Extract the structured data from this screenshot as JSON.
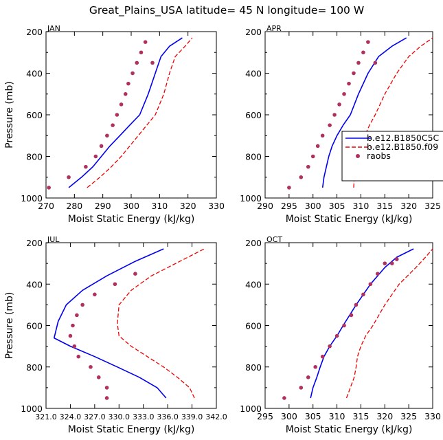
{
  "figure_title": "Great_Plains_USA   latitude= 45 N longitude= 100 W",
  "colors": {
    "model_a": "#0000ee",
    "model_b": "#ee0000",
    "raobs": "#b03060",
    "axis": "#000000"
  },
  "legend": {
    "placement": "right of APR panel",
    "entries": [
      {
        "label": "b.e12.B1850C5C",
        "style": "solid",
        "color_key": "model_a"
      },
      {
        "label": "b.e12.B1850.f09",
        "style": "dashed",
        "color_key": "model_b"
      },
      {
        "label": "raobs",
        "style": "marker",
        "color_key": "raobs"
      }
    ]
  },
  "chart_data": [
    {
      "type": "line",
      "panel": "JAN",
      "xlabel": "Moist Static Energy (kJ/kg)",
      "ylabel": "Pressure (mb)",
      "xlim": [
        270,
        330
      ],
      "ylim": [
        1000,
        200
      ],
      "xticks": [
        270,
        280,
        290,
        300,
        310,
        320,
        330
      ],
      "xtick_labels": [
        "270",
        "280",
        "290",
        "300",
        "310",
        "320",
        "330"
      ],
      "yticks": [
        200,
        400,
        600,
        800,
        1000
      ],
      "ytick_labels": [
        "200",
        "400",
        "600",
        "800",
        "1000"
      ],
      "series": [
        {
          "name": "b.e12.B1850C5C",
          "style": "solid",
          "x": [
            278.0,
            282.5,
            286.5,
            289.5,
            292.5,
            296.0,
            299.5,
            303.0,
            306.0,
            308.5,
            310.5,
            313.5,
            318.0
          ],
          "y": [
            950,
            900,
            850,
            800,
            750,
            700,
            650,
            600,
            500,
            400,
            320,
            270,
            230
          ]
        },
        {
          "name": "b.e12.B1850.f09",
          "style": "dashed",
          "x": [
            284.5,
            289.0,
            293.0,
            296.5,
            299.5,
            302.5,
            305.5,
            308.5,
            311.5,
            313.5,
            315.5,
            319.0,
            321.5
          ],
          "y": [
            950,
            900,
            850,
            800,
            750,
            700,
            650,
            600,
            500,
            400,
            320,
            270,
            230
          ]
        },
        {
          "name": "raobs",
          "style": "marker",
          "x": [
            271.0,
            278.0,
            284.0,
            287.5,
            289.5,
            291.5,
            293.5,
            295.0,
            296.5,
            298.0,
            299.0,
            300.5,
            302.0,
            303.5,
            305.0,
            307.5
          ],
          "y": [
            950,
            900,
            850,
            800,
            750,
            700,
            650,
            600,
            550,
            500,
            450,
            400,
            350,
            300,
            250,
            350
          ]
        }
      ]
    },
    {
      "type": "line",
      "panel": "APR",
      "xlabel": "Moist Static Energy (kJ/kg)",
      "ylabel": "",
      "xlim": [
        290,
        325
      ],
      "ylim": [
        1000,
        200
      ],
      "xticks": [
        290,
        295,
        300,
        305,
        310,
        315,
        320,
        325
      ],
      "xtick_labels": [
        "290",
        "295",
        "300",
        "305",
        "310",
        "315",
        "320",
        "325"
      ],
      "yticks": [
        200,
        400,
        600,
        800,
        1000
      ],
      "ytick_labels": [
        "200",
        "400",
        "600",
        "800",
        "1000"
      ],
      "series": [
        {
          "name": "b.e12.B1850C5C",
          "style": "solid",
          "x": [
            302.0,
            302.3,
            302.8,
            303.3,
            304.0,
            305.0,
            306.3,
            307.8,
            309.5,
            311.5,
            313.7,
            316.5,
            319.5
          ],
          "y": [
            950,
            900,
            850,
            800,
            750,
            700,
            650,
            600,
            500,
            400,
            320,
            270,
            230
          ]
        },
        {
          "name": "b.e12.B1850.f09",
          "style": "dashed",
          "x": [
            308.5,
            308.6,
            308.9,
            309.3,
            309.9,
            310.8,
            311.8,
            313.0,
            315.0,
            317.5,
            320.0,
            322.5,
            325.0
          ],
          "y": [
            950,
            900,
            850,
            800,
            750,
            700,
            650,
            600,
            500,
            400,
            320,
            270,
            230
          ]
        },
        {
          "name": "raobs",
          "style": "marker",
          "x": [
            295.0,
            297.5,
            299.0,
            300.0,
            301.0,
            302.0,
            303.5,
            304.5,
            305.5,
            306.5,
            307.5,
            308.5,
            309.5,
            310.5,
            311.5,
            313.0
          ],
          "y": [
            950,
            900,
            850,
            800,
            750,
            700,
            650,
            600,
            550,
            500,
            450,
            400,
            350,
            300,
            250,
            350
          ]
        }
      ]
    },
    {
      "type": "line",
      "panel": "JUL",
      "xlabel": "Moist Static Energy (kJ/kg)",
      "ylabel": "Pressure (mb)",
      "xlim": [
        321.0,
        342.0
      ],
      "ylim": [
        1000,
        200
      ],
      "xticks": [
        321.0,
        324.0,
        327.0,
        330.0,
        333.0,
        336.0,
        339.0,
        342.0
      ],
      "xtick_labels": [
        "321.0",
        "324.0",
        "327.0",
        "330.0",
        "333.0",
        "336.0",
        "339.0",
        "342.0"
      ],
      "tick_label_note": "rendered on the figure as 321.0324.0327.0330.0333.0336.0339.0342.0",
      "yticks": [
        200,
        400,
        600,
        800,
        1000
      ],
      "ytick_labels": [
        "200",
        "400",
        "600",
        "800",
        "1000"
      ],
      "series": [
        {
          "name": "b.e12.B1850C5C",
          "style": "solid",
          "x": [
            335.8,
            334.7,
            332.5,
            329.8,
            327.0,
            324.0,
            322.0,
            322.5,
            323.5,
            325.5,
            328.5,
            332.0,
            335.5
          ],
          "y": [
            950,
            900,
            850,
            800,
            750,
            700,
            660,
            580,
            500,
            430,
            360,
            290,
            230
          ]
        },
        {
          "name": "b.e12.B1850.f09",
          "style": "dashed",
          "x": [
            339.3,
            338.7,
            337.2,
            335.5,
            333.5,
            331.5,
            330.0,
            329.8,
            330.0,
            331.5,
            334.0,
            337.5,
            340.5
          ],
          "y": [
            950,
            900,
            850,
            800,
            750,
            700,
            650,
            590,
            500,
            430,
            360,
            290,
            230
          ]
        },
        {
          "name": "raobs",
          "style": "marker",
          "x": [
            328.5,
            328.5,
            327.5,
            326.5,
            325.0,
            324.5,
            324.0,
            324.3,
            324.8,
            325.5,
            327.0,
            329.5,
            332.0
          ],
          "y": [
            950,
            900,
            850,
            800,
            750,
            700,
            650,
            600,
            550,
            500,
            450,
            400,
            350
          ]
        }
      ]
    },
    {
      "type": "line",
      "panel": "OCT",
      "xlabel": "Moist Static Energy (kJ/kg)",
      "ylabel": "",
      "xlim": [
        295,
        330
      ],
      "ylim": [
        1000,
        200
      ],
      "xticks": [
        295,
        300,
        305,
        310,
        315,
        320,
        325,
        330
      ],
      "xtick_labels": [
        "295",
        "300",
        "305",
        "310",
        "315",
        "320",
        "325",
        "330"
      ],
      "yticks": [
        200,
        400,
        600,
        800,
        1000
      ],
      "ytick_labels": [
        "200",
        "400",
        "600",
        "800",
        "1000"
      ],
      "series": [
        {
          "name": "b.e12.B1850C5C",
          "style": "solid",
          "x": [
            304.5,
            305.0,
            305.8,
            306.5,
            307.3,
            308.5,
            310.0,
            311.3,
            314.0,
            317.0,
            320.0,
            322.5,
            326.0
          ],
          "y": [
            950,
            900,
            850,
            800,
            750,
            700,
            650,
            600,
            500,
            400,
            320,
            270,
            230
          ]
        },
        {
          "name": "b.e12.B1850.f09",
          "style": "dashed",
          "x": [
            312.0,
            312.8,
            313.6,
            314.0,
            314.3,
            315.0,
            316.0,
            317.5,
            320.0,
            323.0,
            326.5,
            328.5,
            330.0
          ],
          "y": [
            950,
            900,
            850,
            800,
            750,
            700,
            650,
            600,
            500,
            400,
            320,
            270,
            230
          ]
        },
        {
          "name": "raobs",
          "style": "marker",
          "x": [
            299.0,
            302.5,
            304.0,
            305.5,
            307.0,
            308.5,
            310.0,
            311.5,
            313.0,
            314.0,
            315.5,
            317.0,
            318.5,
            320.0,
            321.5,
            322.5
          ],
          "y": [
            950,
            900,
            850,
            800,
            750,
            700,
            650,
            600,
            550,
            500,
            450,
            400,
            350,
            300,
            300,
            280
          ]
        }
      ]
    }
  ]
}
